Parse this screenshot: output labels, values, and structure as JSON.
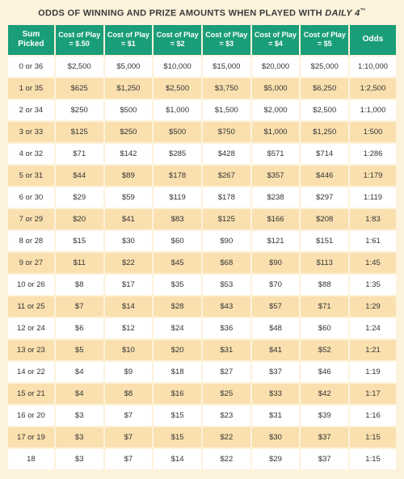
{
  "title_prefix": "ODDS OF WINNING AND PRIZE AMOUNTS WHEN PLAYED WITH ",
  "title_brand": "DAILY 4",
  "title_tm": "™",
  "colors": {
    "page_bg": "#fdf2dc",
    "header_bg": "#1a9e79",
    "header_text": "#ffffff",
    "row_bg": "#ffffff",
    "row_alt_bg": "#fae0af",
    "text": "#333333",
    "title_text": "#3a3a3a"
  },
  "columns": [
    "Sum Picked",
    "Cost of Play\n= $.50",
    "Cost of Play\n= $1",
    "Cost of Play\n= $2",
    "Cost of Play\n= $3",
    "Cost of Play\n= $4",
    "Cost of Play\n= $5",
    "Odds"
  ],
  "rows": [
    [
      "0 or 36",
      "$2,500",
      "$5,000",
      "$10,000",
      "$15,000",
      "$20,000",
      "$25,000",
      "1:10,000"
    ],
    [
      "1 or 35",
      "$625",
      "$1,250",
      "$2,500",
      "$3,750",
      "$5,000",
      "$6,250",
      "1:2,500"
    ],
    [
      "2 or 34",
      "$250",
      "$500",
      "$1,000",
      "$1,500",
      "$2,000",
      "$2,500",
      "1:1,000"
    ],
    [
      "3 or 33",
      "$125",
      "$250",
      "$500",
      "$750",
      "$1,000",
      "$1,250",
      "1:500"
    ],
    [
      "4 or 32",
      "$71",
      "$142",
      "$285",
      "$428",
      "$571",
      "$714",
      "1:286"
    ],
    [
      "5 or 31",
      "$44",
      "$89",
      "$178",
      "$267",
      "$357",
      "$446",
      "1:179"
    ],
    [
      "6 or 30",
      "$29",
      "$59",
      "$119",
      "$178",
      "$238",
      "$297",
      "1:119"
    ],
    [
      "7 or 29",
      "$20",
      "$41",
      "$83",
      "$125",
      "$166",
      "$208",
      "1:83"
    ],
    [
      "8 or 28",
      "$15",
      "$30",
      "$60",
      "$90",
      "$121",
      "$151",
      "1:61"
    ],
    [
      "9 or 27",
      "$11",
      "$22",
      "$45",
      "$68",
      "$90",
      "$113",
      "1:45"
    ],
    [
      "10 or 26",
      "$8",
      "$17",
      "$35",
      "$53",
      "$70",
      "$88",
      "1:35"
    ],
    [
      "11 or 25",
      "$7",
      "$14",
      "$28",
      "$43",
      "$57",
      "$71",
      "1:29"
    ],
    [
      "12 or 24",
      "$6",
      "$12",
      "$24",
      "$36",
      "$48",
      "$60",
      "1:24"
    ],
    [
      "13 or 23",
      "$5",
      "$10",
      "$20",
      "$31",
      "$41",
      "$52",
      "1:21"
    ],
    [
      "14 or 22",
      "$4",
      "$9",
      "$18",
      "$27",
      "$37",
      "$46",
      "1:19"
    ],
    [
      "15 or 21",
      "$4",
      "$8",
      "$16",
      "$25",
      "$33",
      "$42",
      "1:17"
    ],
    [
      "16 or 20",
      "$3",
      "$7",
      "$15",
      "$23",
      "$31",
      "$39",
      "1:16"
    ],
    [
      "17 or 19",
      "$3",
      "$7",
      "$15",
      "$22",
      "$30",
      "$37",
      "1:15"
    ],
    [
      "18",
      "$3",
      "$7",
      "$14",
      "$22",
      "$29",
      "$37",
      "1:15"
    ]
  ]
}
